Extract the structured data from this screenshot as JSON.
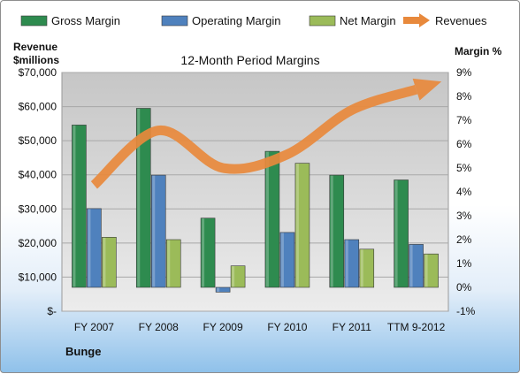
{
  "chart_data": {
    "type": "bar",
    "title": "12-Month Period Margins",
    "left_axis_title": [
      "Revenue",
      "$millions"
    ],
    "right_axis_title": "Margin %",
    "company_label": "Bunge",
    "categories": [
      "FY 2007",
      "FY 2008",
      "FY 2009",
      "FY 2010",
      "FY 2011",
      "TTM 9-2012"
    ],
    "left_axis": {
      "ticks": [
        0,
        10000,
        20000,
        30000,
        40000,
        50000,
        60000,
        70000
      ],
      "tick_labels": [
        "$-",
        "$10,000",
        "$20,000",
        "$30,000",
        "$40,000",
        "$50,000",
        "$60,000",
        "$70,000"
      ],
      "range": [
        0,
        70000
      ]
    },
    "right_axis": {
      "ticks": [
        -1,
        0,
        1,
        2,
        3,
        4,
        5,
        6,
        7,
        8,
        9
      ],
      "tick_labels": [
        "-1%",
        "0%",
        "1%",
        "2%",
        "3%",
        "4%",
        "5%",
        "6%",
        "7%",
        "8%",
        "9%"
      ],
      "range": [
        -1,
        9
      ],
      "unit": "%"
    },
    "series": [
      {
        "name": "Gross Margin",
        "axis": "right",
        "kind": "bar",
        "color": "#2e8b4f",
        "values": [
          6.8,
          7.5,
          2.9,
          5.7,
          4.7,
          4.5
        ]
      },
      {
        "name": "Operating Margin",
        "axis": "right",
        "kind": "bar",
        "color": "#4f81bd",
        "values": [
          3.3,
          4.7,
          -0.2,
          2.3,
          2.0,
          1.8
        ]
      },
      {
        "name": "Net Margin",
        "axis": "right",
        "kind": "bar",
        "color": "#9bbb59",
        "values": [
          2.1,
          2.0,
          0.9,
          5.2,
          1.6,
          1.4
        ]
      },
      {
        "name": "Revenues",
        "axis": "left",
        "kind": "line",
        "color": "#e8893c",
        "values": [
          37000,
          53000,
          42000,
          46000,
          59000,
          65000
        ]
      }
    ],
    "legend_position": "top",
    "grid": true
  }
}
